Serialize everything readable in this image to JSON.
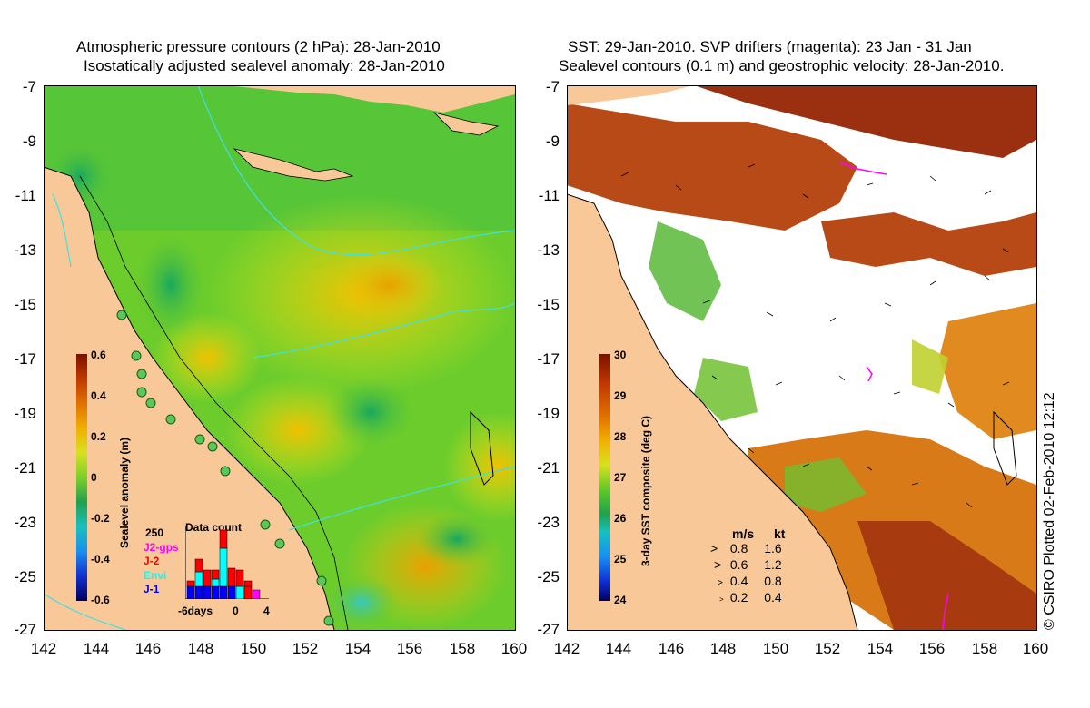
{
  "left_panel": {
    "title_line1": "Atmospheric pressure contours (2 hPa): 28-Jan-2010",
    "title_line2": "Isostatically adjusted sealevel anomaly: 28-Jan-2010",
    "colorbar": {
      "label": "Sealevel anomaly (m)",
      "ticks": [
        "0.6",
        "0.4",
        "0.2",
        "0",
        "-0.2",
        "-0.4",
        "-0.6"
      ]
    },
    "data_count": {
      "title": "Data count",
      "max_label": "250",
      "legend": [
        {
          "name": "J2-gps",
          "color": "#ff00ff"
        },
        {
          "name": "J-2",
          "color": "#ff0000"
        },
        {
          "name": "Envi",
          "color": "#00ffff"
        },
        {
          "name": "J-1",
          "color": "#0000ff"
        }
      ],
      "x_labels": [
        "-6days",
        "0",
        "4"
      ]
    }
  },
  "right_panel": {
    "title_line1": "SST: 29-Jan-2010. SVP drifters (magenta): 23 Jan - 31 Jan",
    "title_line2": "Sealevel contours (0.1 m) and geostrophic velocity: 28-Jan-2010.",
    "colorbar": {
      "label": "3-day SST composite (deg C)",
      "ticks": [
        "30",
        "29",
        "28",
        "27",
        "26",
        "25",
        "24"
      ]
    },
    "velocity_legend": {
      "header_ms": "m/s",
      "header_kt": "kt",
      "rows": [
        {
          "ms": "0.8",
          "kt": "1.6"
        },
        {
          "ms": "0.6",
          "kt": "1.2"
        },
        {
          "ms": "0.4",
          "kt": "0.8"
        },
        {
          "ms": "0.2",
          "kt": "0.4"
        }
      ]
    }
  },
  "y_axis_labels": [
    "-7",
    "-9",
    "-11",
    "-13",
    "-15",
    "-17",
    "-19",
    "-21",
    "-23",
    "-25",
    "-27"
  ],
  "x_axis_labels": [
    "142",
    "144",
    "146",
    "148",
    "150",
    "152",
    "154",
    "156",
    "158",
    "160"
  ],
  "credit": "© CSIRO Plotted 02-Feb-2010 12:12"
}
